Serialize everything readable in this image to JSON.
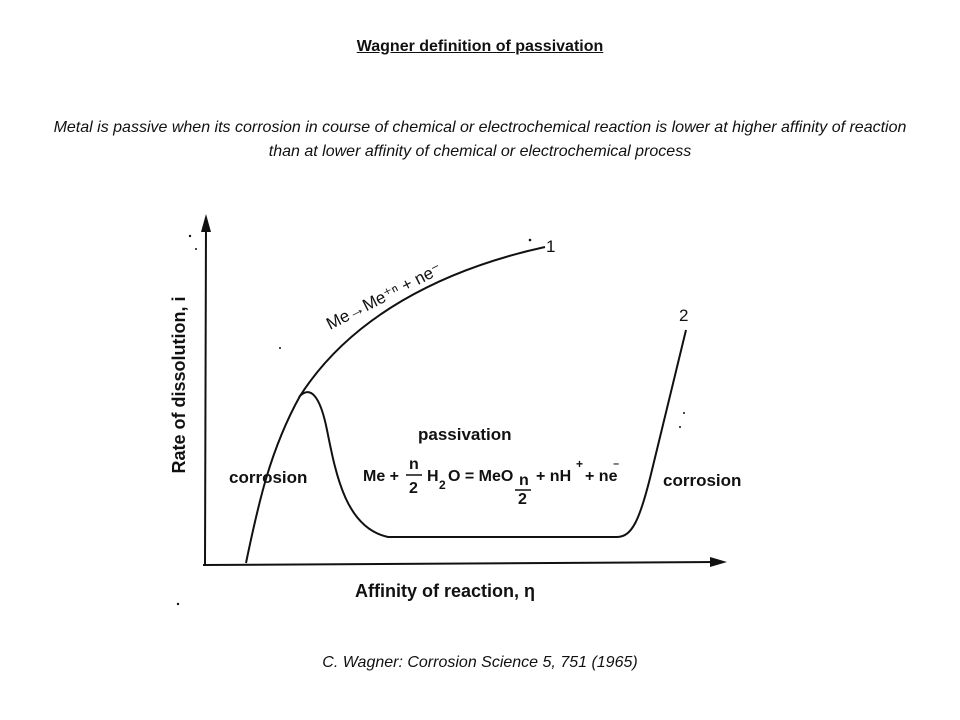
{
  "title": "Wagner definition of passivation",
  "definition": "Metal is passive when its corrosion in course of chemical or electrochemical reaction is lower at higher affinity of reaction than at lower affinity of chemical or electrochemical process",
  "citation": "C. Wagner: Corrosion Science 5, 751 (1965)",
  "diagram": {
    "y_axis_label": "Rate of dissolution,  i",
    "x_axis_label": "Affinity of reaction,  η",
    "curve_1_label": "1",
    "curve_2_label": "2",
    "curve_1_reaction": "Me→Me⁺ⁿ + ne⁻",
    "region_left": "corrosion",
    "region_middle": "passivation",
    "region_right": "corrosion",
    "passivation_reaction": {
      "me": "Me +",
      "frac_n": "n",
      "frac_2": "2",
      "h2o": "H",
      "h2o_sub": "2",
      "o_eq_meo": "O = MeO",
      "nh": "+ nH",
      "nh_sup": "+",
      "ne": "+ ne",
      "ne_sup": "⁻"
    }
  }
}
